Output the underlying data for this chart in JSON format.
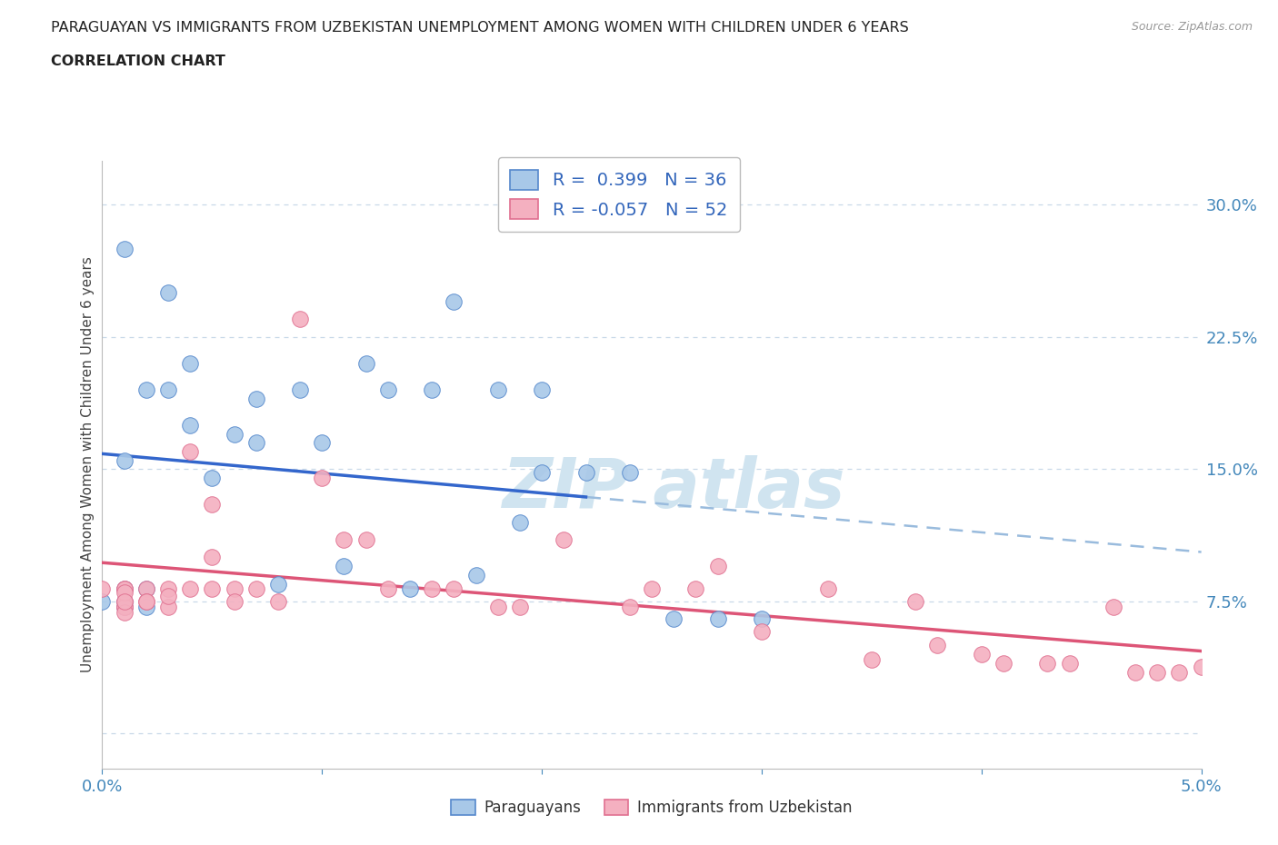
{
  "title_line1": "PARAGUAYAN VS IMMIGRANTS FROM UZBEKISTAN UNEMPLOYMENT AMONG WOMEN WITH CHILDREN UNDER 6 YEARS",
  "title_line2": "CORRELATION CHART",
  "source": "Source: ZipAtlas.com",
  "ylabel": "Unemployment Among Women with Children Under 6 years",
  "xlim": [
    0.0,
    0.05
  ],
  "ylim": [
    -0.02,
    0.325
  ],
  "yticks": [
    0.0,
    0.075,
    0.15,
    0.225,
    0.3
  ],
  "yticklabels": [
    "",
    "7.5%",
    "15.0%",
    "22.5%",
    "30.0%"
  ],
  "xticks": [
    0.0,
    0.01,
    0.02,
    0.03,
    0.04,
    0.05
  ],
  "xticklabels": [
    "0.0%",
    "",
    "",
    "",
    "",
    "5.0%"
  ],
  "blue_R": 0.399,
  "blue_N": 36,
  "pink_R": -0.057,
  "pink_N": 52,
  "blue_fill": "#a8c8e8",
  "blue_edge": "#5588cc",
  "pink_fill": "#f4b0c0",
  "pink_edge": "#e07090",
  "blue_line": "#3366cc",
  "pink_line": "#dd5577",
  "dash_line": "#99bbdd",
  "grid_color": "#c8d8e8",
  "axis_color": "#4488bb",
  "title_color": "#222222",
  "legend_text_color": "#3366bb",
  "watermark_color": "#d0e4f0",
  "blue_x": [
    0.002,
    0.004,
    0.004,
    0.005,
    0.006,
    0.007,
    0.007,
    0.008,
    0.009,
    0.01,
    0.011,
    0.012,
    0.013,
    0.014,
    0.015,
    0.016,
    0.017,
    0.018,
    0.019,
    0.02,
    0.001,
    0.001,
    0.001,
    0.002,
    0.003,
    0.003,
    0.0,
    0.001,
    0.001,
    0.002,
    0.022,
    0.024,
    0.026,
    0.028,
    0.03,
    0.02
  ],
  "blue_y": [
    0.195,
    0.21,
    0.175,
    0.145,
    0.17,
    0.165,
    0.19,
    0.085,
    0.195,
    0.165,
    0.095,
    0.21,
    0.195,
    0.082,
    0.195,
    0.245,
    0.09,
    0.195,
    0.12,
    0.195,
    0.275,
    0.155,
    0.082,
    0.082,
    0.25,
    0.195,
    0.075,
    0.075,
    0.072,
    0.072,
    0.148,
    0.148,
    0.065,
    0.065,
    0.065,
    0.148
  ],
  "pink_x": [
    0.0,
    0.001,
    0.001,
    0.001,
    0.001,
    0.001,
    0.001,
    0.001,
    0.001,
    0.002,
    0.002,
    0.002,
    0.003,
    0.003,
    0.003,
    0.004,
    0.004,
    0.005,
    0.005,
    0.005,
    0.006,
    0.006,
    0.007,
    0.008,
    0.009,
    0.01,
    0.011,
    0.012,
    0.013,
    0.015,
    0.016,
    0.018,
    0.019,
    0.021,
    0.024,
    0.025,
    0.027,
    0.028,
    0.03,
    0.033,
    0.035,
    0.037,
    0.038,
    0.04,
    0.041,
    0.043,
    0.044,
    0.046,
    0.047,
    0.048,
    0.049,
    0.05
  ],
  "pink_y": [
    0.082,
    0.082,
    0.075,
    0.072,
    0.072,
    0.069,
    0.082,
    0.08,
    0.075,
    0.082,
    0.075,
    0.075,
    0.082,
    0.072,
    0.078,
    0.082,
    0.16,
    0.082,
    0.1,
    0.13,
    0.082,
    0.075,
    0.082,
    0.075,
    0.235,
    0.145,
    0.11,
    0.11,
    0.082,
    0.082,
    0.082,
    0.072,
    0.072,
    0.11,
    0.072,
    0.082,
    0.082,
    0.095,
    0.058,
    0.082,
    0.042,
    0.075,
    0.05,
    0.045,
    0.04,
    0.04,
    0.04,
    0.072,
    0.035,
    0.035,
    0.035,
    0.038
  ]
}
